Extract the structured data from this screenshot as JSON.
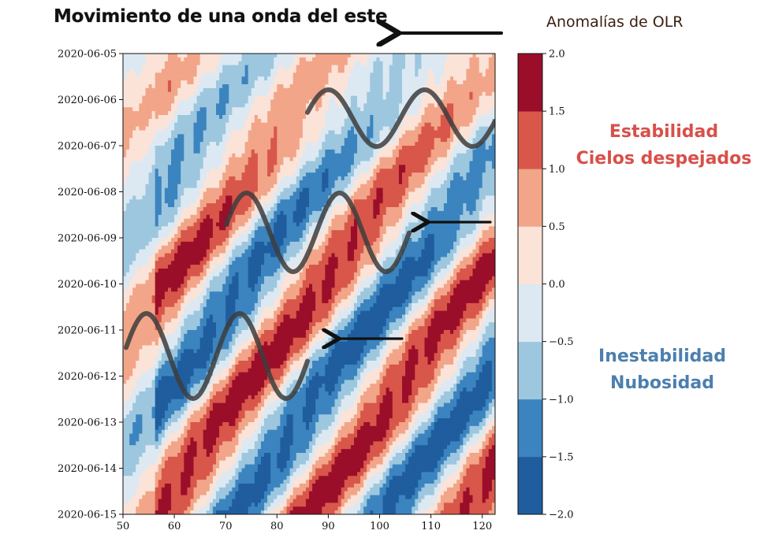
{
  "title": "Movimiento de una onda del este",
  "colorbar_title": "Anomalías de OLR",
  "labels": {
    "stability": [
      "Estabilidad",
      "Cielos despejados"
    ],
    "instability": [
      "Inestabilidad",
      "Nubosidad"
    ]
  },
  "colors": {
    "stability_text": "#d8504a",
    "instability_text": "#4c7fae"
  },
  "chart_data": {
    "type": "heatmap",
    "subtype": "filled-contour (Hovmöller)",
    "title": "Movimiento de una onda del este",
    "xlabel": "",
    "ylabel": "",
    "xlim": [
      50,
      122.5
    ],
    "ylim_dates": [
      "2020-06-05",
      "2020-06-15"
    ],
    "y_axis_inverted": true,
    "x_ticks": [
      50,
      60,
      70,
      80,
      90,
      100,
      110,
      120
    ],
    "y_ticks": [
      "2020-06-05",
      "2020-06-06",
      "2020-06-07",
      "2020-06-08",
      "2020-06-09",
      "2020-06-10",
      "2020-06-11",
      "2020-06-12",
      "2020-06-13",
      "2020-06-14",
      "2020-06-15"
    ],
    "colorbar": {
      "label": "Anomalías de OLR",
      "levels": [
        -2.0,
        -1.5,
        -1.0,
        -0.5,
        0.0,
        0.5,
        1.0,
        1.5,
        2.0
      ],
      "tick_labels": [
        "−2.0",
        "−1.5",
        "−1.0",
        "−0.5",
        "0.0",
        "0.5",
        "1.0",
        "1.5",
        "2.0"
      ],
      "colors": [
        "#1f5d9e",
        "#3b84bf",
        "#9dc7df",
        "#dde9f2",
        "#fbe3d8",
        "#f2a588",
        "#d8574a",
        "#9a0e2a"
      ]
    },
    "pattern": "alternating positive and negative anomaly bands tilted so that features shift westward (decreasing longitude) with time",
    "westward_shift_deg_per_day": 6.5,
    "wavelength_deg": 30,
    "annotations": [
      {
        "type": "wave-arrow",
        "direction": "west",
        "text": ""
      },
      {
        "type": "wave-arrow",
        "direction": "west",
        "text": ""
      },
      {
        "type": "wave-arrow",
        "direction": "west",
        "text": ""
      }
    ]
  }
}
